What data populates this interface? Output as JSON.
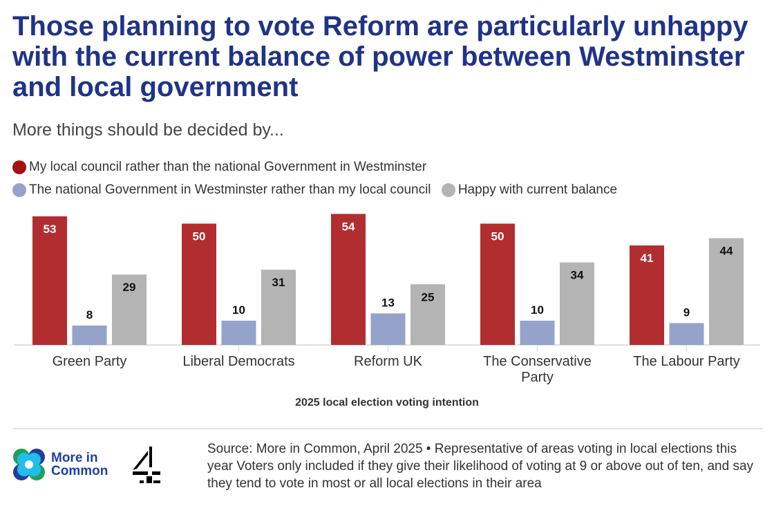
{
  "title": "Those planning to vote Reform are particularly unhappy with the current balance of power between Westminster and local government",
  "subtitle": "More things should be decided by...",
  "chart_data": {
    "type": "bar",
    "categories": [
      "Green Party",
      "Liberal Democrats",
      "Reform UK",
      "The Conservative Party",
      "The Labour Party"
    ],
    "series": [
      {
        "name": "My local council rather than the national Government in Westminster",
        "color": "#b22d30",
        "values": [
          53,
          50,
          54,
          50,
          41
        ]
      },
      {
        "name": "The national Government in Westminster rather than my local council",
        "color": "#95a3ca",
        "values": [
          8,
          10,
          13,
          10,
          9
        ]
      },
      {
        "name": "Happy with current balance",
        "color": "#b4b4b4",
        "values": [
          29,
          31,
          25,
          34,
          44
        ]
      }
    ],
    "xlabel": "2025 local election voting intention",
    "ylabel": "",
    "ylim": [
      0,
      56
    ],
    "legend": "top-left",
    "grid": false
  },
  "footer": {
    "logo_text": "More in Common",
    "source": "Source: More in Common, April 2025 • Representative of areas voting in local elections this year Voters only included if they give their likelihood of voting at 9 or above out of ten, and say they tend to vote in most or all local elections in their area"
  }
}
